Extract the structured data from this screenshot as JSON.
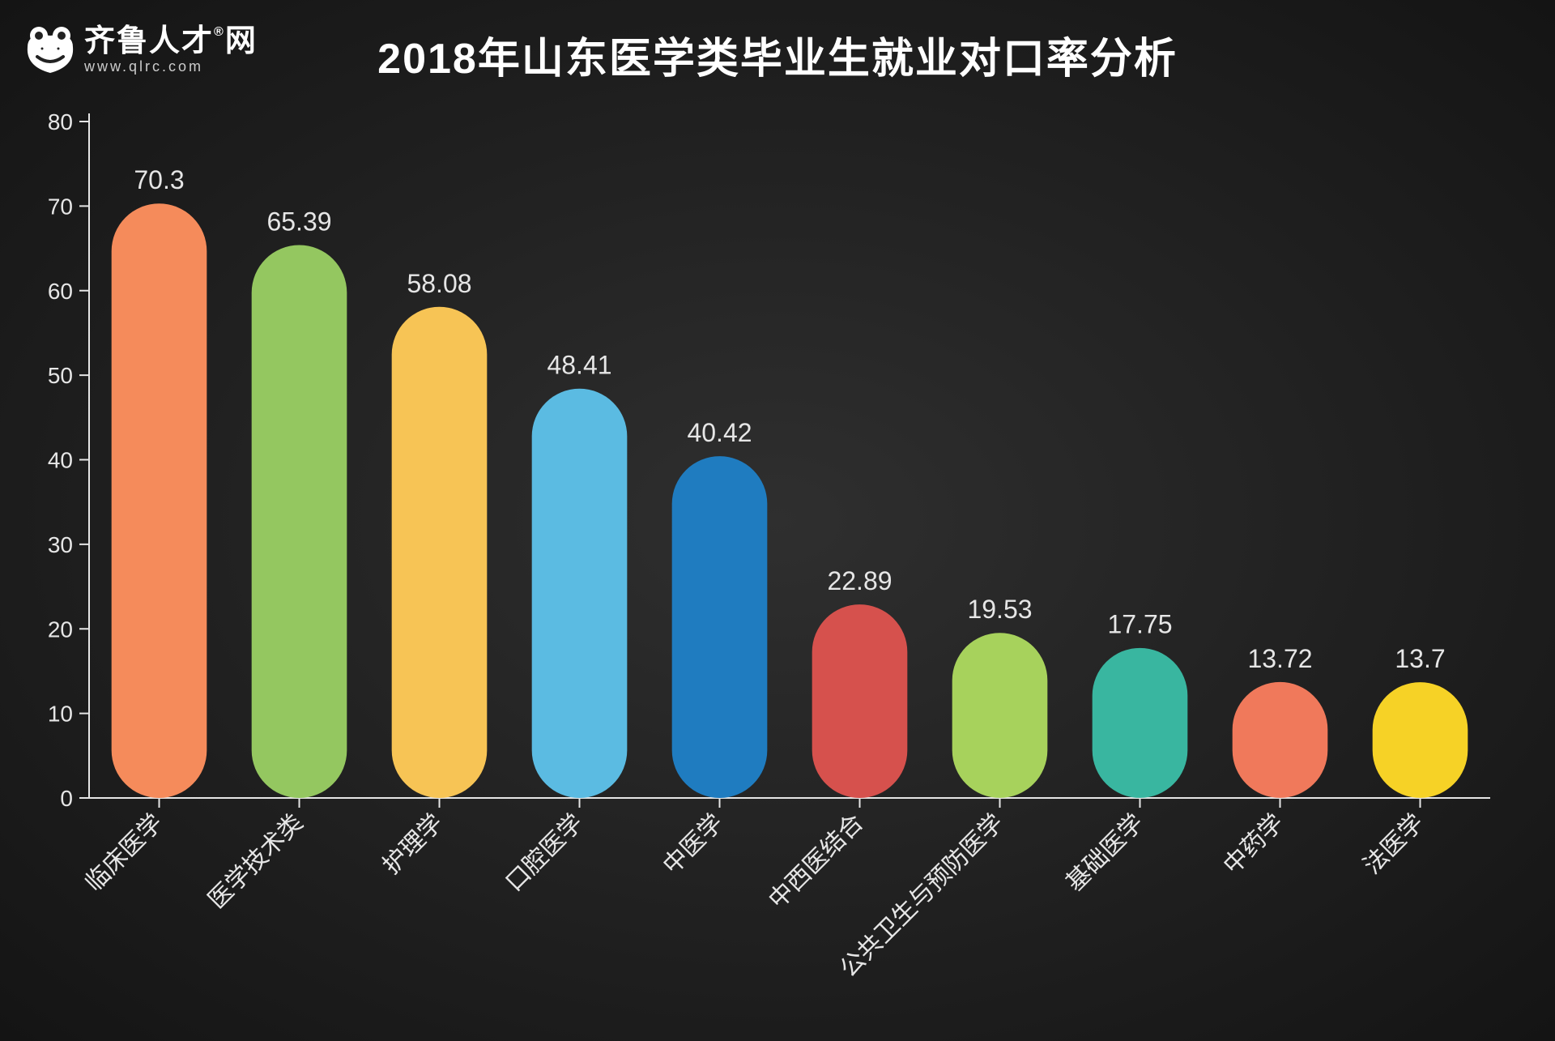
{
  "header": {
    "brand": "齐鲁人才",
    "brand_suffix": "网",
    "brand_reg": "®",
    "url": "www.qlrc.com"
  },
  "title": "2018年山东医学类毕业生就业对口率分析",
  "chart": {
    "type": "bar",
    "background_color": "#222222",
    "axis_color": "#e6e6e6",
    "text_color": "#e6e6e6",
    "title_fontsize": 52,
    "axis_fontsize": 28,
    "value_fontsize": 32,
    "category_fontsize": 30,
    "ylim": [
      0,
      80
    ],
    "ytick_step": 10,
    "tick_length": 12,
    "bar_width_ratio": 0.68,
    "bar_corner_radius": 60,
    "categories": [
      "临床医学",
      "医学技术类",
      "护理学",
      "口腔医学",
      "中医学",
      "中西医结合",
      "公共卫生与预防医学",
      "基础医学",
      "中药学",
      "法医学"
    ],
    "values": [
      70.3,
      65.39,
      58.08,
      48.41,
      40.42,
      22.89,
      19.53,
      17.75,
      13.72,
      13.7
    ],
    "bar_colors": [
      "#f58b5b",
      "#94c760",
      "#f7c455",
      "#5bbbe2",
      "#1f7cc0",
      "#d6514d",
      "#a7d25c",
      "#39b6a0",
      "#f0795b",
      "#f6d226"
    ]
  }
}
